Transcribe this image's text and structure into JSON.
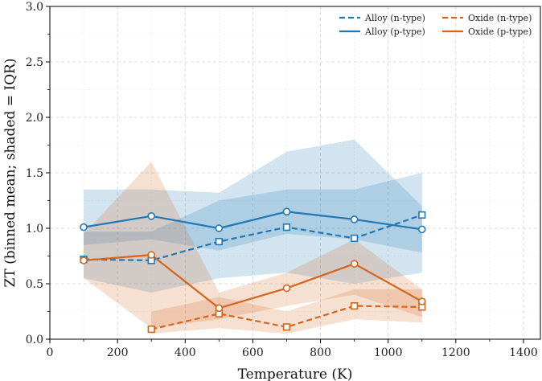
{
  "chart_data": {
    "type": "line",
    "title": "",
    "xlabel": "Temperature (K)",
    "ylabel": "ZT (binned mean; shaded = IQR)",
    "xlim": [
      0,
      1450
    ],
    "ylim": [
      0,
      3.0
    ],
    "xticks": [
      0,
      200,
      400,
      600,
      800,
      1000,
      1200,
      1400
    ],
    "yticks": [
      0.0,
      0.5,
      1.0,
      1.5,
      2.0,
      2.5,
      3.0
    ],
    "xtick_labels": [
      "0",
      "200",
      "400",
      "600",
      "800",
      "1000",
      "1200",
      "1400"
    ],
    "ytick_labels": [
      "0.0",
      "0.5",
      "1.0",
      "1.5",
      "2.0",
      "2.5",
      "3.0"
    ],
    "grid": true,
    "legend_position": "top-right",
    "series": [
      {
        "name": "Alloy (n-type)",
        "color": "#1f77b4",
        "linestyle": "dashed",
        "marker": "square",
        "x": [
          100,
          300,
          500,
          700,
          900,
          1100
        ],
        "y": [
          0.72,
          0.71,
          0.88,
          1.01,
          0.91,
          1.12
        ],
        "iqr_low": [
          0.55,
          0.42,
          0.55,
          0.6,
          0.5,
          0.6
        ],
        "iqr_high": [
          0.97,
          0.97,
          1.25,
          1.35,
          1.35,
          1.5
        ]
      },
      {
        "name": "Alloy (p-type)",
        "color": "#1f77b4",
        "linestyle": "solid",
        "marker": "circle",
        "x": [
          100,
          300,
          500,
          700,
          900,
          1100
        ],
        "y": [
          1.01,
          1.11,
          1.0,
          1.15,
          1.08,
          0.99
        ],
        "iqr_low": [
          0.85,
          0.9,
          0.8,
          0.95,
          0.9,
          0.78
        ],
        "iqr_high": [
          1.35,
          1.35,
          1.32,
          1.69,
          1.8,
          1.2
        ]
      },
      {
        "name": "Oxide (n-type)",
        "color": "#d3661c",
        "linestyle": "dashed",
        "marker": "square",
        "x": [
          300,
          500,
          700,
          900,
          1100
        ],
        "y": [
          0.09,
          0.23,
          0.11,
          0.3,
          0.29
        ],
        "iqr_low": [
          0.05,
          0.1,
          0.05,
          0.18,
          0.15
        ],
        "iqr_high": [
          0.25,
          0.38,
          0.25,
          0.45,
          0.45
        ]
      },
      {
        "name": "Oxide (p-type)",
        "color": "#d3661c",
        "linestyle": "solid",
        "marker": "circle",
        "x": [
          100,
          300,
          500,
          700,
          900,
          1100
        ],
        "y": [
          0.71,
          0.76,
          0.28,
          0.46,
          0.68,
          0.34
        ],
        "iqr_low": [
          0.55,
          0.1,
          0.18,
          0.3,
          0.4,
          0.2
        ],
        "iqr_high": [
          0.95,
          1.6,
          0.42,
          0.6,
          0.9,
          0.45
        ]
      }
    ]
  }
}
